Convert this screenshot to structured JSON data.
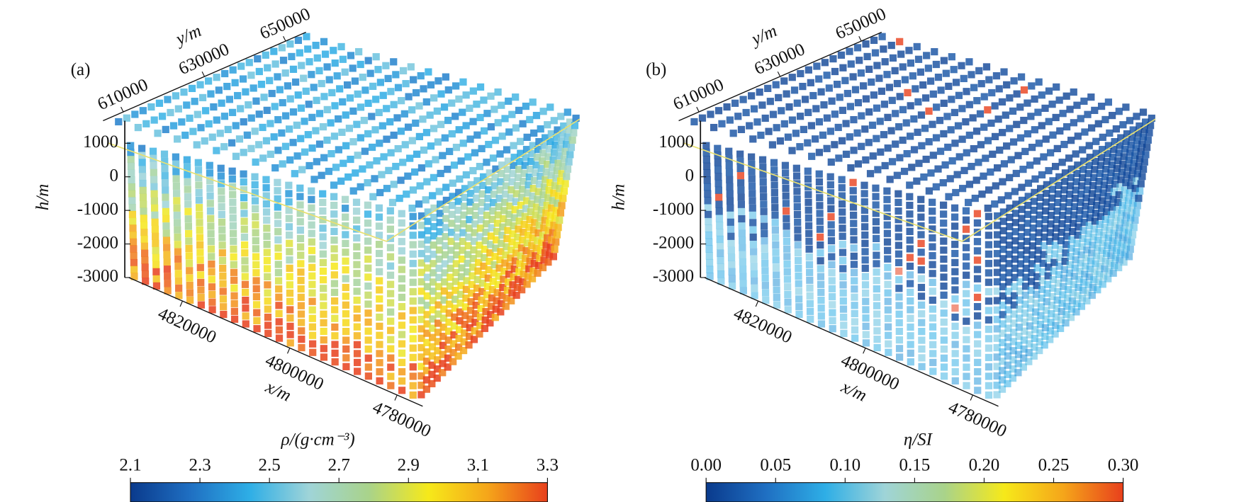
{
  "chart_data": [
    {
      "type": "voxel3d",
      "panel_label": "(a)",
      "xlabel": "x/m",
      "ylabel": "y/m",
      "zlabel": "h/m",
      "xlim": [
        4830000,
        4770000
      ],
      "xticks": [
        4820000,
        4800000,
        4780000
      ],
      "ylim": [
        605000,
        655000
      ],
      "yticks": [
        610000,
        630000,
        650000
      ],
      "zlim": [
        -3000,
        1000
      ],
      "zticks": [
        1000,
        0,
        -1000,
        -2000,
        -3000
      ],
      "colorbar": {
        "label": "ρ/(g·cm⁻³)",
        "lim": [
          2.1,
          3.3
        ],
        "ticks": [
          2.1,
          2.3,
          2.5,
          2.7,
          2.9,
          3.1,
          3.3
        ],
        "colormap": [
          "#0a3a8c",
          "#1f6fc2",
          "#2eaee6",
          "#9fd4d8",
          "#a9d38a",
          "#f6e91a",
          "#f5a51a",
          "#e8401c"
        ]
      }
    },
    {
      "type": "voxel3d",
      "panel_label": "(b)",
      "xlabel": "x/m",
      "ylabel": "y/m",
      "zlabel": "h/m",
      "xlim": [
        4830000,
        4770000
      ],
      "xticks": [
        4820000,
        4800000,
        4780000
      ],
      "ylim": [
        605000,
        655000
      ],
      "yticks": [
        610000,
        630000,
        650000
      ],
      "zlim": [
        -3000,
        1000
      ],
      "zticks": [
        1000,
        0,
        -1000,
        -2000,
        -3000
      ],
      "colorbar": {
        "label": "η/SI",
        "lim": [
          0,
          0.3
        ],
        "ticks": [
          {
            "value": 0,
            "label": "0.00"
          },
          {
            "value": 0.05,
            "label": "0.05"
          },
          {
            "value": 0.1,
            "label": "0.10"
          },
          {
            "value": 0.15,
            "label": "0.15"
          },
          {
            "value": 0.2,
            "label": "0.20"
          },
          {
            "value": 0.25,
            "label": "0.25"
          },
          {
            "value": 0.3,
            "label": "0.30"
          }
        ],
        "colormap": [
          "#0a3a8c",
          "#1f6fc2",
          "#2eaee6",
          "#9fd4d8",
          "#a9d38a",
          "#f6e91a",
          "#f5a51a",
          "#e8401c"
        ]
      }
    }
  ]
}
